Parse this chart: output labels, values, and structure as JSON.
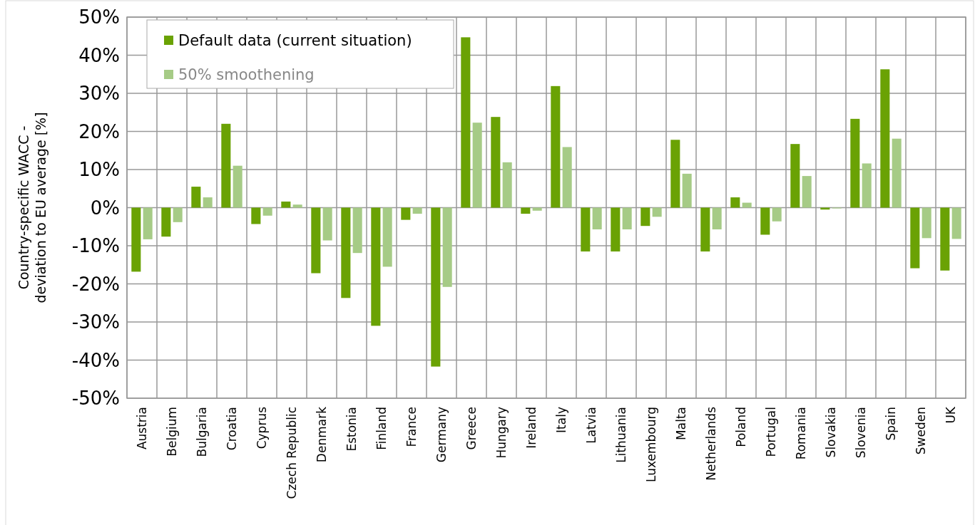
{
  "chart_data": {
    "type": "bar",
    "ylabel": "Country-specific WACC - deviation to EU average [%]",
    "categories": [
      "Austria",
      "Belgium",
      "Bulgaria",
      "Croatia",
      "Cyprus",
      "Czech Republic",
      "Denmark",
      "Estonia",
      "Finland",
      "France",
      "Germany",
      "Greece",
      "Hungary",
      "Ireland",
      "Italy",
      "Latvia",
      "Lithuania",
      "Luxembourg",
      "Malta",
      "Netherlands",
      "Poland",
      "Portugal",
      "Romania",
      "Slovakia",
      "Slovenia",
      "Spain",
      "Sweden",
      "UK"
    ],
    "series": [
      {
        "name": "Default data (current situation)",
        "color": "#6aa204",
        "values": [
          -16.8,
          -7.6,
          5.5,
          22,
          -4.3,
          1.6,
          -17.2,
          -23.7,
          -31,
          -3.2,
          -41.7,
          44.7,
          23.8,
          -1.6,
          31.9,
          -11.5,
          -11.5,
          -4.8,
          17.8,
          -11.5,
          2.7,
          -7.1,
          16.7,
          -0.5,
          23.3,
          36.3,
          -15.9,
          -16.5
        ]
      },
      {
        "name": "50% smoothening",
        "color": "#a6cb86",
        "values": [
          -8.3,
          -3.8,
          2.7,
          11,
          -2.1,
          0.8,
          -8.6,
          -11.9,
          -15.5,
          -1.6,
          -20.8,
          22.3,
          11.9,
          -0.8,
          15.9,
          -5.7,
          -5.7,
          -2.4,
          8.9,
          -5.7,
          1.3,
          -3.6,
          8.3,
          -0.2,
          11.6,
          18.1,
          -8,
          -8.2
        ]
      }
    ],
    "ylim": [
      -50,
      50
    ],
    "yticks": [
      {
        "value": -50,
        "label": "-50%"
      },
      {
        "value": -40,
        "label": "-40%"
      },
      {
        "value": -30,
        "label": "-30%"
      },
      {
        "value": -20,
        "label": "-20%"
      },
      {
        "value": -10,
        "label": "-10%"
      },
      {
        "value": 0,
        "label": "0%"
      },
      {
        "value": 10,
        "label": "10%"
      },
      {
        "value": 20,
        "label": "20%"
      },
      {
        "value": 30,
        "label": "30%"
      },
      {
        "value": 40,
        "label": "40%"
      },
      {
        "value": 50,
        "label": "50%"
      }
    ],
    "grid": true,
    "legend": "top left"
  }
}
